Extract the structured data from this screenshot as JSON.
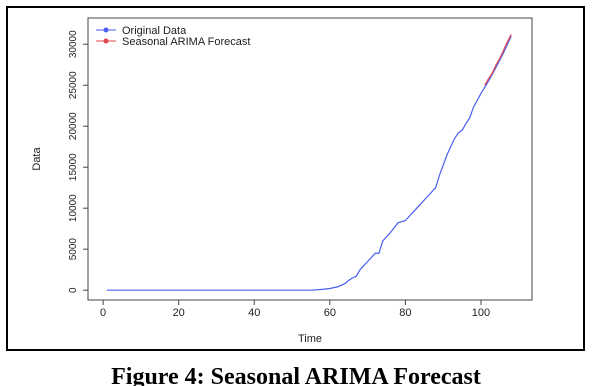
{
  "chart_data": {
    "type": "line",
    "x_label": "Time",
    "y_label": "Data",
    "caption": "Figure 4: Seasonal ARIMA Forecast",
    "xlim": [
      -4,
      113.5
    ],
    "xticks": [
      0,
      20,
      40,
      60,
      80,
      100
    ],
    "ylim": [
      -1200,
      33200
    ],
    "yticks": [
      0,
      5000,
      10000,
      15000,
      20000,
      25000,
      30000
    ],
    "legend": "top-left",
    "series": [
      {
        "name": "Original Data",
        "color": "#4a5ef0",
        "x": [
          1,
          55,
          58,
          60,
          62,
          64,
          65,
          66,
          67,
          68,
          70,
          72,
          73,
          74,
          76,
          78,
          80,
          82,
          84,
          86,
          88,
          89,
          91,
          93,
          94,
          95,
          96,
          97,
          98,
          100,
          102,
          104,
          106,
          108
        ],
        "values": [
          0,
          0,
          100,
          200,
          400,
          800,
          1200,
          1500,
          1700,
          2500,
          3500,
          4500,
          4500,
          6000,
          7000,
          8200,
          8500,
          9500,
          10500,
          11500,
          12500,
          14000,
          16500,
          18500,
          19200,
          19500,
          20300,
          21000,
          22300,
          24000,
          25500,
          27200,
          29000,
          31000
        ]
      },
      {
        "name": "Seasonal ARIMA Forecast",
        "color": "#e0474c",
        "x": [
          101,
          102,
          103,
          104,
          105,
          106,
          107,
          108
        ],
        "values": [
          25000,
          25800,
          26500,
          27500,
          28300,
          29300,
          30300,
          31200
        ]
      }
    ]
  }
}
